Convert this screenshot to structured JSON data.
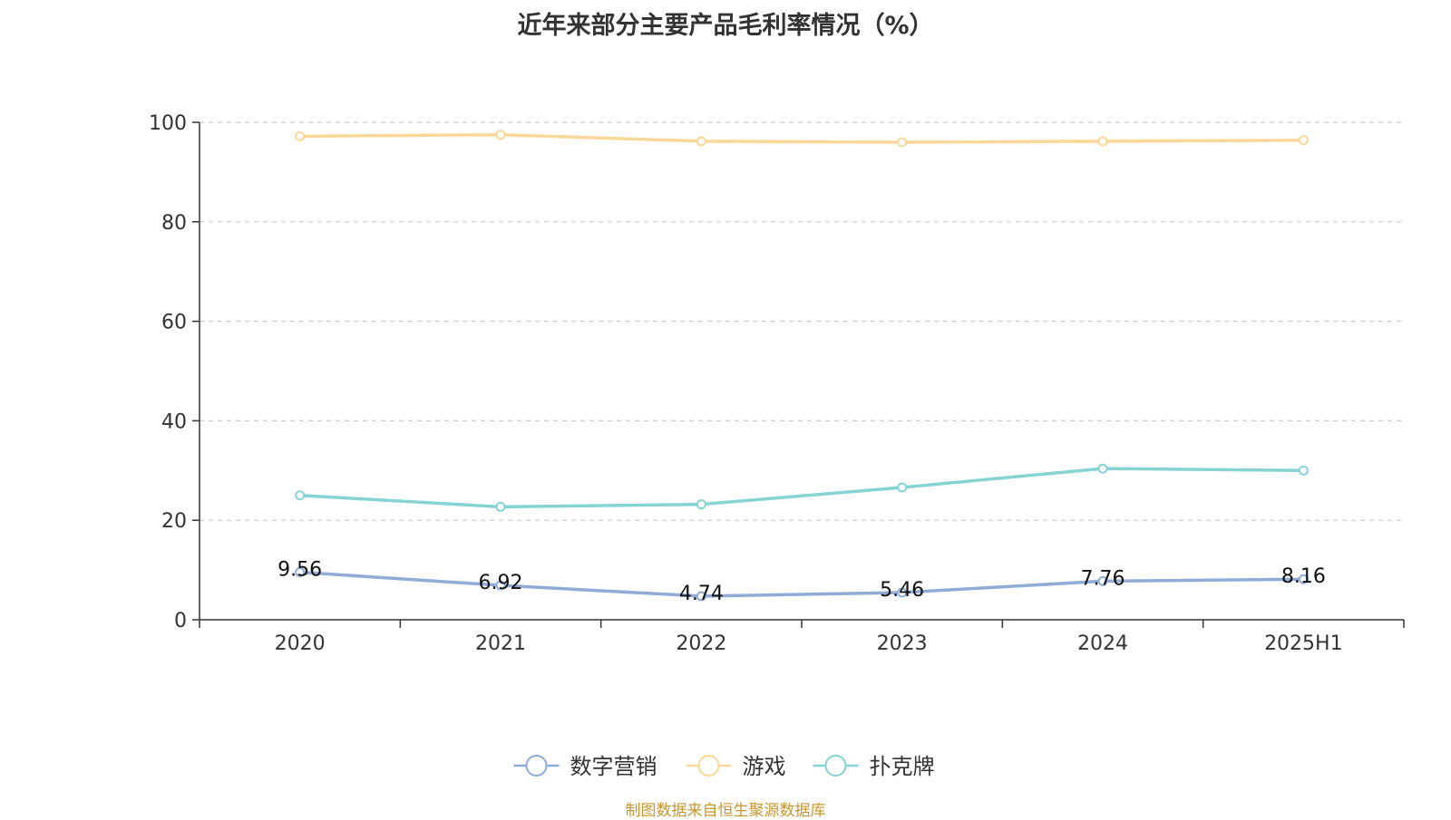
{
  "chart_data": {
    "type": "line",
    "title": "近年来部分主要产品毛利率情况（%）",
    "categories": [
      "2020",
      "2021",
      "2022",
      "2023",
      "2024",
      "2025H1"
    ],
    "ylim": [
      0,
      100
    ],
    "yticks": [
      0,
      20,
      40,
      60,
      80,
      100
    ],
    "grid": true,
    "legend_position": "bottom",
    "series": [
      {
        "name": "数字营销",
        "values": [
          9.56,
          6.92,
          4.74,
          5.46,
          7.76,
          8.16
        ],
        "color": "#8fabd6",
        "show_labels": true
      },
      {
        "name": "游戏",
        "values": [
          97.2,
          97.5,
          96.2,
          96.0,
          96.2,
          96.4
        ],
        "color": "#f9d89a",
        "show_labels": false
      },
      {
        "name": "扑克牌",
        "values": [
          25.0,
          22.7,
          23.2,
          26.6,
          30.4,
          30.0
        ],
        "color": "#85d3d3",
        "show_labels": false
      }
    ]
  },
  "source_note": "制图数据来自恒生聚源数据库"
}
